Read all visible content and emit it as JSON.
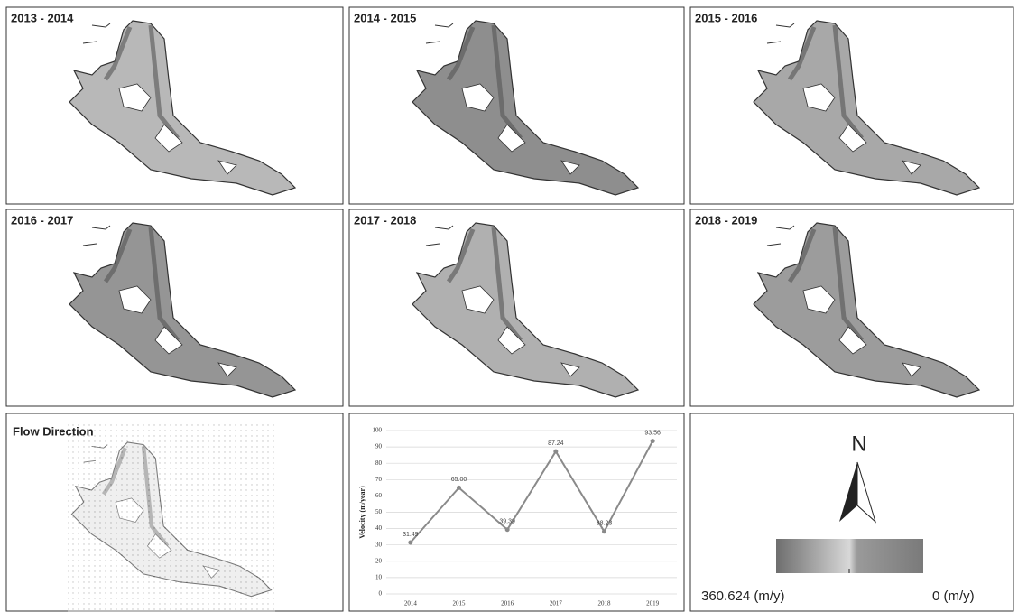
{
  "maps": [
    {
      "title": "2013 - 2014"
    },
    {
      "title": "2014 - 2015"
    },
    {
      "title": "2015 - 2016"
    },
    {
      "title": "2016 - 2017"
    },
    {
      "title": "2017 - 2018"
    },
    {
      "title": "2018 - 2019"
    }
  ],
  "flow_map": {
    "title": "Flow Direction"
  },
  "chart_data": {
    "type": "line",
    "ylabel": "Velocity (m/year)",
    "categories": [
      "2014",
      "2015",
      "2016",
      "2017",
      "2018",
      "2019"
    ],
    "series": [
      {
        "color": "#8a8a8a",
        "values": [
          31.49,
          65.0,
          39.39,
          87.24,
          38.23,
          93.56
        ],
        "value_labels": [
          "31.49",
          "65.00",
          "39.39",
          "87.24",
          "38.23",
          "93.56"
        ]
      }
    ],
    "ylim": [
      0,
      100
    ],
    "yticks": [
      0,
      10,
      20,
      30,
      40,
      50,
      60,
      70,
      80,
      90,
      100
    ],
    "grid": true
  },
  "legend": {
    "north": "N",
    "max_label": "360.624 (m/y)",
    "min_label": "0 (m/y)"
  }
}
